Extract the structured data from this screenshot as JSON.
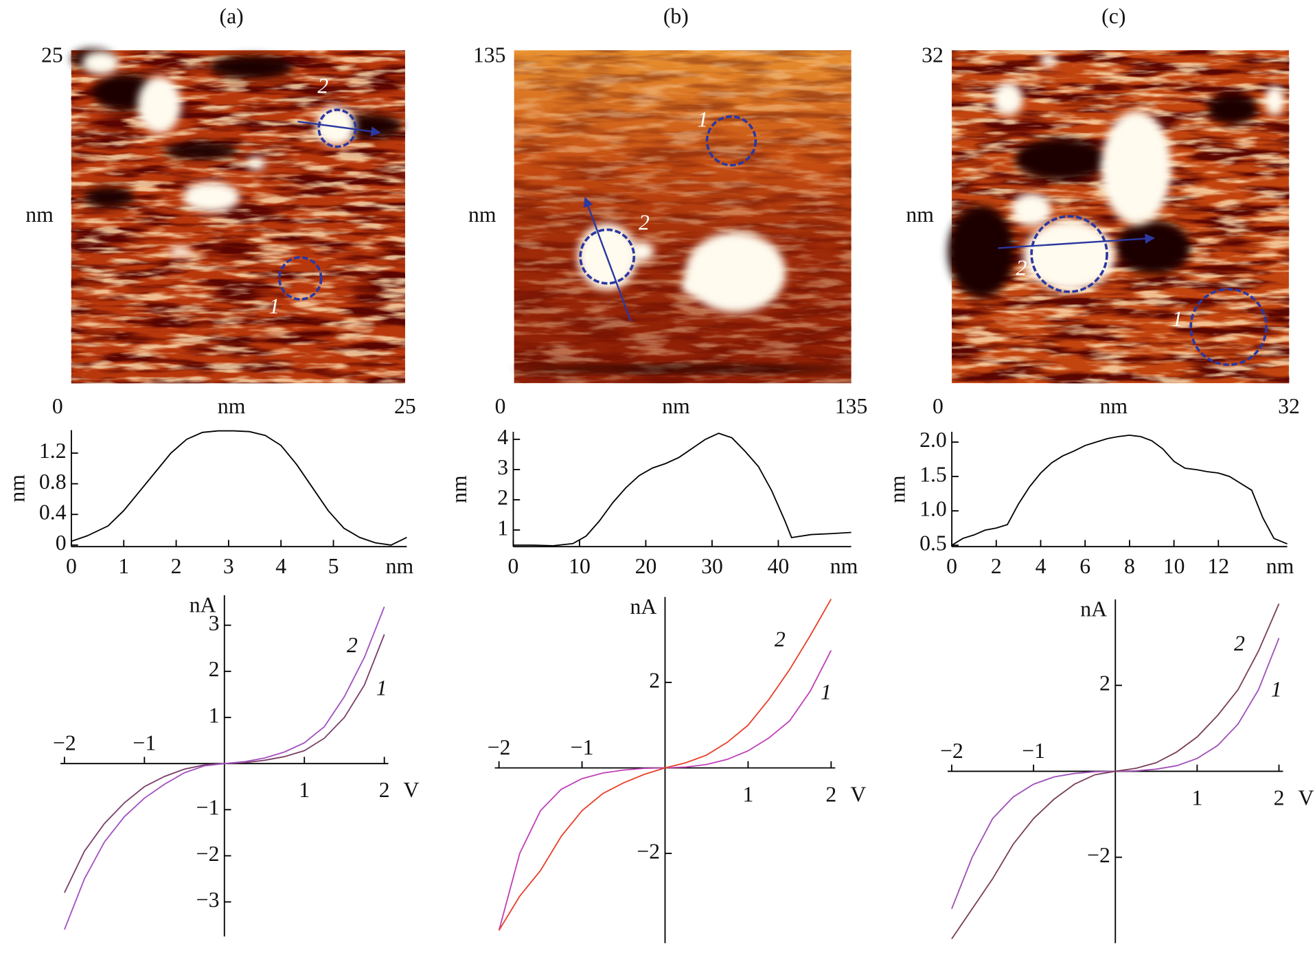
{
  "chart_data": [
    {
      "type": "image",
      "title": "(a)",
      "xlim": [
        0,
        25
      ],
      "ylim": [
        0,
        25
      ],
      "xticks": [
        0,
        25
      ],
      "yticks": [
        25
      ],
      "xlabel": "nm",
      "ylabel": "nm",
      "annotations": [
        "2",
        "1"
      ]
    },
    {
      "type": "image",
      "title": "(b)",
      "xlim": [
        0,
        135
      ],
      "ylim": [
        0,
        135
      ],
      "xticks": [
        0,
        135
      ],
      "yticks": [
        135
      ],
      "xlabel": "nm",
      "ylabel": "nm",
      "annotations": [
        "1",
        "2"
      ]
    },
    {
      "type": "image",
      "title": "(c)",
      "xlim": [
        0,
        32
      ],
      "ylim": [
        0,
        32
      ],
      "xticks": [
        0,
        32
      ],
      "yticks": [
        32
      ],
      "xlabel": "nm",
      "ylabel": "nm",
      "annotations": [
        "2",
        "1"
      ]
    },
    {
      "type": "line",
      "xlabel": "nm",
      "ylabel": "nm",
      "color": "#000000",
      "x": [
        0,
        0.3,
        0.7,
        1.0,
        1.3,
        1.6,
        1.9,
        2.2,
        2.5,
        2.8,
        3.1,
        3.4,
        3.7,
        4.0,
        4.3,
        4.6,
        4.9,
        5.2,
        5.5,
        5.8,
        6.1,
        6.4
      ],
      "values": [
        0.05,
        0.12,
        0.25,
        0.45,
        0.7,
        0.95,
        1.2,
        1.38,
        1.47,
        1.49,
        1.49,
        1.48,
        1.43,
        1.3,
        1.05,
        0.75,
        0.45,
        0.22,
        0.1,
        0.03,
        0.0,
        0.1
      ],
      "xlim": [
        0,
        6.4
      ],
      "ylim": [
        -0.02,
        1.5
      ],
      "xticks": [
        0,
        1,
        2,
        3,
        4,
        5
      ],
      "yticks": [
        0,
        0.4,
        0.8,
        1.2
      ]
    },
    {
      "type": "line",
      "xlabel": "nm",
      "ylabel": "nm",
      "color": "#000000",
      "x": [
        0,
        3,
        6,
        9,
        11,
        13,
        15,
        17,
        19,
        21,
        23,
        25,
        27,
        29,
        31,
        33,
        35,
        37,
        39,
        41,
        42,
        45,
        48,
        51
      ],
      "values": [
        0.5,
        0.5,
        0.48,
        0.55,
        0.8,
        1.3,
        1.9,
        2.4,
        2.8,
        3.05,
        3.2,
        3.4,
        3.7,
        4.0,
        4.2,
        4.05,
        3.6,
        3.1,
        2.3,
        1.3,
        0.75,
        0.85,
        0.88,
        0.92
      ],
      "xlim": [
        0,
        51
      ],
      "ylim": [
        0.45,
        4.25
      ],
      "xticks": [
        0,
        10,
        20,
        30,
        40
      ],
      "yticks": [
        1,
        2,
        3,
        4
      ]
    },
    {
      "type": "line",
      "xlabel": "nm",
      "ylabel": "nm",
      "color": "#000000",
      "x": [
        0,
        0.5,
        1,
        1.5,
        2,
        2.5,
        3,
        3.5,
        4,
        4.5,
        5,
        5.5,
        6,
        6.5,
        7,
        7.5,
        8,
        8.5,
        9,
        9.5,
        10,
        10.5,
        11,
        11.5,
        12,
        12.5,
        13,
        13.5,
        14,
        14.5,
        15.1
      ],
      "values": [
        0.5,
        0.6,
        0.65,
        0.72,
        0.75,
        0.8,
        1.1,
        1.35,
        1.55,
        1.7,
        1.8,
        1.87,
        1.95,
        2.0,
        2.05,
        2.08,
        2.1,
        2.08,
        2.02,
        1.9,
        1.72,
        1.62,
        1.6,
        1.57,
        1.55,
        1.5,
        1.4,
        1.3,
        0.9,
        0.6,
        0.52
      ],
      "xlim": [
        0,
        15.1
      ],
      "ylim": [
        0.48,
        2.15
      ],
      "xticks": [
        0,
        2,
        4,
        6,
        8,
        10,
        12
      ],
      "yticks": [
        0.5,
        {
          "value": 1,
          "label": "1.0"
        },
        1.5,
        {
          "value": 2,
          "label": "2.0"
        }
      ]
    },
    {
      "type": "iv",
      "xlabel": "V",
      "ylabel": "nA",
      "x": [
        -2,
        -1.75,
        -1.5,
        -1.25,
        -1,
        -0.75,
        -0.5,
        -0.25,
        0,
        0.25,
        0.5,
        0.75,
        1,
        1.25,
        1.5,
        1.75,
        2
      ],
      "series": [
        {
          "name": "1",
          "color": "#7a3f6a",
          "values": [
            -2.8,
            -1.9,
            -1.3,
            -0.85,
            -0.5,
            -0.28,
            -0.12,
            -0.03,
            0,
            0.02,
            0.07,
            0.15,
            0.28,
            0.55,
            1.0,
            1.7,
            2.8
          ]
        },
        {
          "name": "2",
          "color": "#a250c0",
          "values": [
            -3.6,
            -2.5,
            -1.7,
            -1.15,
            -0.75,
            -0.45,
            -0.2,
            -0.05,
            0,
            0.04,
            0.12,
            0.25,
            0.45,
            0.8,
            1.45,
            2.3,
            3.4
          ]
        }
      ],
      "xlim": [
        -2.05,
        2.05
      ],
      "ylim": [
        -3.75,
        3.65
      ],
      "xticks": [
        {
          "value": -2,
          "label": "−2"
        },
        {
          "value": -1,
          "label": "−1"
        },
        1,
        2
      ],
      "yticks": [
        3,
        2,
        1,
        {
          "value": -1,
          "label": "−1"
        },
        {
          "value": -2,
          "label": "−2"
        },
        {
          "value": -3,
          "label": "−3"
        }
      ]
    },
    {
      "type": "iv",
      "xlabel": "V",
      "ylabel": "nA",
      "x": [
        -2,
        -1.75,
        -1.5,
        -1.25,
        -1,
        -0.75,
        -0.5,
        -0.25,
        0,
        0.25,
        0.5,
        0.75,
        1,
        1.25,
        1.5,
        1.75,
        2
      ],
      "series": [
        {
          "name": "1",
          "color": "#c040b8",
          "values": [
            -3.8,
            -2.0,
            -1.0,
            -0.5,
            -0.25,
            -0.12,
            -0.05,
            -0.01,
            0,
            0.02,
            0.08,
            0.2,
            0.4,
            0.7,
            1.1,
            1.8,
            2.75
          ]
        },
        {
          "name": "2",
          "color": "#e8402a",
          "values": [
            -3.8,
            -3.0,
            -2.4,
            -1.6,
            -1.0,
            -0.6,
            -0.35,
            -0.15,
            0,
            0.12,
            0.3,
            0.6,
            1.0,
            1.6,
            2.3,
            3.1,
            3.95
          ]
        }
      ],
      "xlim": [
        -2.05,
        2.05
      ],
      "ylim": [
        -4.1,
        4.0
      ],
      "xticks": [
        {
          "value": -2,
          "label": "−2"
        },
        {
          "value": -1,
          "label": "−1"
        },
        1,
        2
      ],
      "yticks": [
        2,
        {
          "value": -2,
          "label": "−2"
        }
      ]
    },
    {
      "type": "iv",
      "xlabel": "V",
      "ylabel": "nA",
      "x": [
        -2,
        -1.75,
        -1.5,
        -1.25,
        -1,
        -0.75,
        -0.5,
        -0.25,
        0,
        0.25,
        0.5,
        0.75,
        1,
        1.25,
        1.5,
        1.75,
        2
      ],
      "series": [
        {
          "name": "1",
          "color": "#a050b8",
          "values": [
            -3.2,
            -2.0,
            -1.1,
            -0.6,
            -0.3,
            -0.13,
            -0.05,
            -0.01,
            0,
            0.01,
            0.05,
            0.13,
            0.3,
            0.6,
            1.1,
            1.9,
            3.1
          ]
        },
        {
          "name": "2",
          "color": "#7a3f5a",
          "values": [
            -3.9,
            -3.2,
            -2.5,
            -1.7,
            -1.1,
            -0.65,
            -0.3,
            -0.08,
            0,
            0.07,
            0.2,
            0.45,
            0.8,
            1.3,
            1.9,
            2.8,
            3.9
          ]
        }
      ],
      "xlim": [
        -2.05,
        2.05
      ],
      "ylim": [
        -4.0,
        4.0
      ],
      "xticks": [
        {
          "value": -2,
          "label": "−2"
        },
        {
          "value": -1,
          "label": "−1"
        },
        1,
        2
      ],
      "yticks": [
        2,
        {
          "value": -2,
          "label": "−2"
        }
      ]
    }
  ]
}
